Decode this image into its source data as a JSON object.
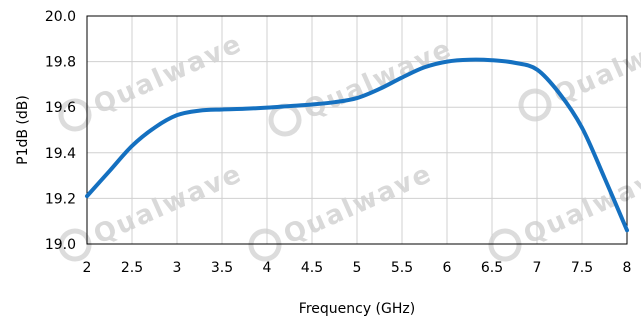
{
  "chart_data": {
    "type": "line",
    "xlabel": "Frequency (GHz)",
    "ylabel": "P1dB (dB)",
    "xlim": [
      2,
      8
    ],
    "ylim": [
      19.0,
      20.0
    ],
    "x_ticks": [
      "2",
      "2.5",
      "3",
      "3.5",
      "4",
      "4.5",
      "5",
      "5.5",
      "6",
      "6.5",
      "7",
      "7.5",
      "8"
    ],
    "y_ticks": [
      "19.0",
      "19.2",
      "19.4",
      "19.6",
      "19.8",
      "20.0"
    ],
    "grid": true,
    "series": [
      {
        "color": "#1470c0",
        "x": [
          2.0,
          2.25,
          2.5,
          2.75,
          3.0,
          3.25,
          3.5,
          3.75,
          4.0,
          4.25,
          4.5,
          4.75,
          5.0,
          5.25,
          5.5,
          5.75,
          6.0,
          6.25,
          6.5,
          6.75,
          7.0,
          7.25,
          7.5,
          7.75,
          8.0
        ],
        "y": [
          19.21,
          19.32,
          19.43,
          19.51,
          19.565,
          19.585,
          19.59,
          19.593,
          19.598,
          19.605,
          19.612,
          19.622,
          19.64,
          19.68,
          19.73,
          19.775,
          19.8,
          19.808,
          19.806,
          19.795,
          19.765,
          19.66,
          19.51,
          19.29,
          19.06
        ]
      }
    ]
  },
  "watermark": {
    "text": "Qualwave",
    "icon": "qualwave-logo-icon"
  }
}
